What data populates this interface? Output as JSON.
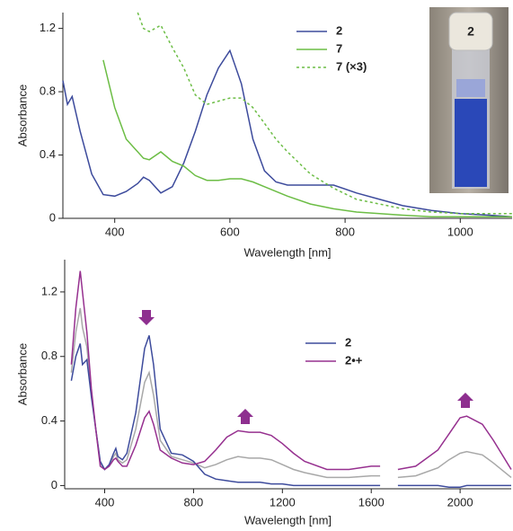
{
  "photo_label": "2",
  "chart_data": [
    {
      "type": "line",
      "x_label": "Wavelength [nm]",
      "y_label": "Absorbance",
      "xlim": [
        310,
        1090
      ],
      "xticks": [
        400,
        600,
        800,
        1000
      ],
      "ylim": [
        0,
        1.3
      ],
      "yticks": [
        0,
        0.4,
        0.8,
        1.2
      ],
      "x": [
        310,
        318,
        326,
        340,
        360,
        380,
        400,
        420,
        440,
        450,
        460,
        480,
        500,
        520,
        540,
        560,
        580,
        600,
        620,
        640,
        660,
        680,
        700,
        740,
        780,
        820,
        860,
        900,
        950,
        1000,
        1050,
        1090
      ],
      "series": [
        {
          "name": "2",
          "color": "#3d4b9c",
          "dashed": false,
          "values": [
            0.87,
            0.72,
            0.77,
            0.55,
            0.28,
            0.15,
            0.14,
            0.17,
            0.22,
            0.26,
            0.24,
            0.16,
            0.2,
            0.35,
            0.55,
            0.78,
            0.95,
            1.06,
            0.85,
            0.5,
            0.3,
            0.23,
            0.21,
            0.21,
            0.21,
            0.16,
            0.12,
            0.08,
            0.05,
            0.03,
            0.02,
            0.01
          ]
        },
        {
          "name": "7",
          "color": "#6cbd45",
          "dashed": false,
          "values": [
            null,
            null,
            null,
            null,
            null,
            1.0,
            0.7,
            0.5,
            0.42,
            0.38,
            0.37,
            0.42,
            0.36,
            0.33,
            0.27,
            0.24,
            0.24,
            0.25,
            0.25,
            0.23,
            0.2,
            0.17,
            0.14,
            0.09,
            0.06,
            0.04,
            0.03,
            0.02,
            0.01,
            0.01,
            0.01,
            0.01
          ]
        },
        {
          "name": "7 (×3)",
          "color": "#6cbd45",
          "dashed": true,
          "values": [
            null,
            null,
            null,
            null,
            null,
            null,
            null,
            null,
            1.3,
            1.2,
            1.18,
            1.22,
            1.08,
            0.95,
            0.78,
            0.72,
            0.74,
            0.76,
            0.76,
            0.7,
            0.6,
            0.5,
            0.42,
            0.28,
            0.19,
            0.12,
            0.09,
            0.06,
            0.04,
            0.03,
            0.03,
            0.03
          ]
        }
      ]
    },
    {
      "type": "line",
      "x_label": "Wavelength [nm]",
      "y_label": "Absorbance",
      "xlim": [
        220,
        2230
      ],
      "xticks": [
        400,
        800,
        1200,
        1600,
        2000
      ],
      "ylim": [
        -0.02,
        1.4
      ],
      "yticks": [
        0,
        0.4,
        0.8,
        1.2
      ],
      "x": [
        250,
        270,
        290,
        300,
        320,
        340,
        360,
        380,
        400,
        420,
        440,
        450,
        460,
        480,
        500,
        540,
        580,
        600,
        620,
        650,
        700,
        750,
        800,
        850,
        900,
        950,
        1000,
        1050,
        1100,
        1150,
        1200,
        1250,
        1300,
        1400,
        1500,
        1600,
        1640,
        1680,
        1720,
        1800,
        1900,
        1950,
        2000,
        2030,
        2100,
        2150,
        2230
      ],
      "series": [
        {
          "color": "#a8a8a8",
          "dashed": false,
          "values": [
            0.7,
            0.95,
            1.1,
            0.98,
            0.86,
            0.58,
            0.35,
            0.14,
            0.1,
            0.12,
            0.18,
            0.2,
            0.16,
            0.14,
            0.16,
            0.35,
            0.64,
            0.7,
            0.56,
            0.28,
            0.18,
            0.16,
            0.14,
            0.11,
            0.13,
            0.16,
            0.18,
            0.17,
            0.17,
            0.16,
            0.13,
            0.1,
            0.08,
            0.05,
            0.05,
            0.06,
            0.06,
            null,
            0.05,
            0.06,
            0.11,
            0.16,
            0.2,
            0.21,
            0.19,
            0.14,
            0.05
          ]
        },
        {
          "name": "2",
          "color": "#3d4b9c",
          "dashed": false,
          "values": [
            0.65,
            0.8,
            0.88,
            0.75,
            0.78,
            0.55,
            0.35,
            0.15,
            0.1,
            0.13,
            0.2,
            0.23,
            0.18,
            0.16,
            0.2,
            0.45,
            0.85,
            0.93,
            0.75,
            0.35,
            0.2,
            0.19,
            0.15,
            0.07,
            0.04,
            0.03,
            0.02,
            0.02,
            0.02,
            0.01,
            0.01,
            0,
            0,
            0,
            0,
            0,
            0,
            null,
            0,
            0,
            0,
            -0.01,
            -0.01,
            0,
            0,
            0,
            0
          ]
        },
        {
          "name": "2•+",
          "color": "#96308f",
          "dashed": false,
          "values": [
            0.75,
            1.1,
            1.33,
            1.2,
            0.95,
            0.6,
            0.35,
            0.12,
            0.1,
            0.12,
            0.16,
            0.17,
            0.15,
            0.12,
            0.12,
            0.25,
            0.42,
            0.46,
            0.38,
            0.22,
            0.17,
            0.14,
            0.13,
            0.15,
            0.22,
            0.3,
            0.34,
            0.33,
            0.33,
            0.31,
            0.26,
            0.2,
            0.15,
            0.1,
            0.1,
            0.12,
            0.12,
            null,
            0.1,
            0.12,
            0.22,
            0.32,
            0.42,
            0.43,
            0.38,
            0.28,
            0.1
          ]
        }
      ]
    }
  ]
}
